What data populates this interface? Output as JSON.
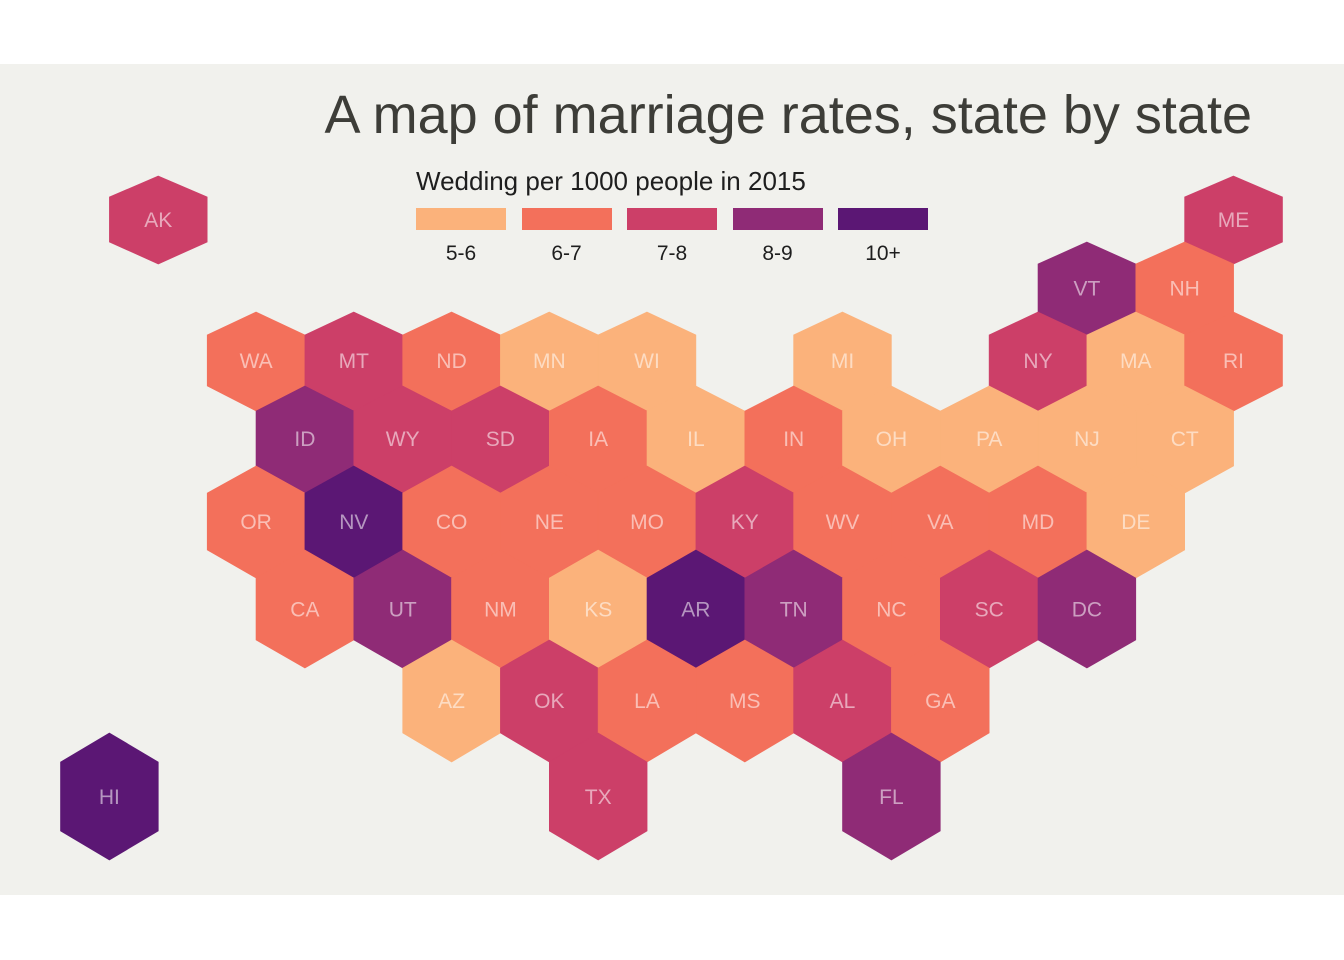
{
  "chart_data": {
    "type": "hexbin-map",
    "title": "A map of marriage rates, state by state",
    "legend": {
      "title": "Wedding per 1000 people in 2015",
      "bins": [
        {
          "label": "5-6",
          "color": "#fbb27b"
        },
        {
          "label": "6-7",
          "color": "#f3705b"
        },
        {
          "label": "7-8",
          "color": "#cc3f68"
        },
        {
          "label": "8-9",
          "color": "#8f2b76"
        },
        {
          "label": "10+",
          "color": "#5b1774"
        }
      ]
    },
    "states": [
      {
        "abbr": "AK",
        "bin": "7-8",
        "row": 0,
        "col": 0
      },
      {
        "abbr": "ME",
        "bin": "7-8",
        "row": 0,
        "col": 11
      },
      {
        "abbr": "VT",
        "bin": "8-9",
        "row": 1,
        "col": 9.5
      },
      {
        "abbr": "NH",
        "bin": "6-7",
        "row": 1,
        "col": 10.5
      },
      {
        "abbr": "WA",
        "bin": "6-7",
        "row": 2,
        "col": 1
      },
      {
        "abbr": "MT",
        "bin": "7-8",
        "row": 2,
        "col": 2
      },
      {
        "abbr": "ND",
        "bin": "6-7",
        "row": 2,
        "col": 3
      },
      {
        "abbr": "MN",
        "bin": "5-6",
        "row": 2,
        "col": 4
      },
      {
        "abbr": "WI",
        "bin": "5-6",
        "row": 2,
        "col": 5
      },
      {
        "abbr": "MI",
        "bin": "5-6",
        "row": 2,
        "col": 7
      },
      {
        "abbr": "NY",
        "bin": "7-8",
        "row": 2,
        "col": 9
      },
      {
        "abbr": "MA",
        "bin": "5-6",
        "row": 2,
        "col": 10
      },
      {
        "abbr": "RI",
        "bin": "6-7",
        "row": 2,
        "col": 11
      },
      {
        "abbr": "ID",
        "bin": "8-9",
        "row": 3,
        "col": 1.5
      },
      {
        "abbr": "WY",
        "bin": "7-8",
        "row": 3,
        "col": 2.5
      },
      {
        "abbr": "SD",
        "bin": "7-8",
        "row": 3,
        "col": 3.5
      },
      {
        "abbr": "IA",
        "bin": "6-7",
        "row": 3,
        "col": 4.5
      },
      {
        "abbr": "IL",
        "bin": "5-6",
        "row": 3,
        "col": 5.5
      },
      {
        "abbr": "IN",
        "bin": "6-7",
        "row": 3,
        "col": 6.5
      },
      {
        "abbr": "OH",
        "bin": "5-6",
        "row": 3,
        "col": 7.5
      },
      {
        "abbr": "PA",
        "bin": "5-6",
        "row": 3,
        "col": 8.5
      },
      {
        "abbr": "NJ",
        "bin": "5-6",
        "row": 3,
        "col": 9.5
      },
      {
        "abbr": "CT",
        "bin": "5-6",
        "row": 3,
        "col": 10.5
      },
      {
        "abbr": "OR",
        "bin": "6-7",
        "row": 4,
        "col": 1
      },
      {
        "abbr": "NV",
        "bin": "10+",
        "row": 4,
        "col": 2
      },
      {
        "abbr": "CO",
        "bin": "6-7",
        "row": 4,
        "col": 3
      },
      {
        "abbr": "NE",
        "bin": "6-7",
        "row": 4,
        "col": 4
      },
      {
        "abbr": "MO",
        "bin": "6-7",
        "row": 4,
        "col": 5
      },
      {
        "abbr": "KY",
        "bin": "7-8",
        "row": 4,
        "col": 6
      },
      {
        "abbr": "WV",
        "bin": "6-7",
        "row": 4,
        "col": 7
      },
      {
        "abbr": "VA",
        "bin": "6-7",
        "row": 4,
        "col": 8
      },
      {
        "abbr": "MD",
        "bin": "6-7",
        "row": 4,
        "col": 9
      },
      {
        "abbr": "DE",
        "bin": "5-6",
        "row": 4,
        "col": 10
      },
      {
        "abbr": "CA",
        "bin": "6-7",
        "row": 5,
        "col": 1.5
      },
      {
        "abbr": "UT",
        "bin": "8-9",
        "row": 5,
        "col": 2.5
      },
      {
        "abbr": "NM",
        "bin": "6-7",
        "row": 5,
        "col": 3.5
      },
      {
        "abbr": "KS",
        "bin": "5-6",
        "row": 5,
        "col": 4.5
      },
      {
        "abbr": "AR",
        "bin": "10+",
        "row": 5,
        "col": 5.5
      },
      {
        "abbr": "TN",
        "bin": "8-9",
        "row": 5,
        "col": 6.5
      },
      {
        "abbr": "NC",
        "bin": "6-7",
        "row": 5,
        "col": 7.5
      },
      {
        "abbr": "SC",
        "bin": "7-8",
        "row": 5,
        "col": 8.5
      },
      {
        "abbr": "DC",
        "bin": "8-9",
        "row": 5,
        "col": 9.5
      },
      {
        "abbr": "AZ",
        "bin": "5-6",
        "row": 6,
        "col": 3
      },
      {
        "abbr": "OK",
        "bin": "7-8",
        "row": 6,
        "col": 4
      },
      {
        "abbr": "LA",
        "bin": "6-7",
        "row": 6,
        "col": 5
      },
      {
        "abbr": "MS",
        "bin": "6-7",
        "row": 6,
        "col": 6
      },
      {
        "abbr": "AL",
        "bin": "7-8",
        "row": 6,
        "col": 7
      },
      {
        "abbr": "GA",
        "bin": "6-7",
        "row": 6,
        "col": 8
      },
      {
        "abbr": "HI",
        "bin": "10+",
        "row": 7,
        "col": -0.5
      },
      {
        "abbr": "TX",
        "bin": "7-8",
        "row": 7,
        "col": 4.5
      },
      {
        "abbr": "FL",
        "bin": "8-9",
        "row": 7,
        "col": 7.5
      }
    ]
  }
}
